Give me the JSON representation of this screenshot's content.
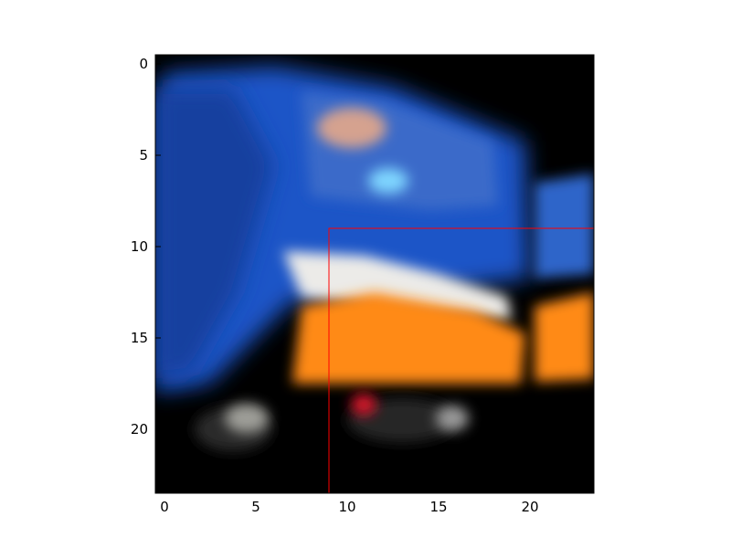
{
  "figure": {
    "xaxis": {
      "tick_labels": [
        "0",
        "5",
        "10",
        "15",
        "20"
      ]
    },
    "yaxis": {
      "tick_labels": [
        "0",
        "5",
        "10",
        "15",
        "20"
      ]
    },
    "image": {
      "description_kind": "blurry low-resolution photo crop",
      "palette": {
        "background": "#000000",
        "truck_blue": "#1f54c7",
        "truck_dark_blue": "#163f9f",
        "white_stripe": "#ecebe8",
        "orange_panel": "#ff8a12",
        "highlight_cyan": "#7fd6ff",
        "highlight_red": "#d5122b",
        "highlight_pink": "#d5a28f"
      }
    },
    "highlight_box": {
      "x_start": 9.0,
      "y_start": 9.0,
      "x_end": 24.0,
      "y_end": 24.0,
      "color": "#ff0000"
    }
  }
}
